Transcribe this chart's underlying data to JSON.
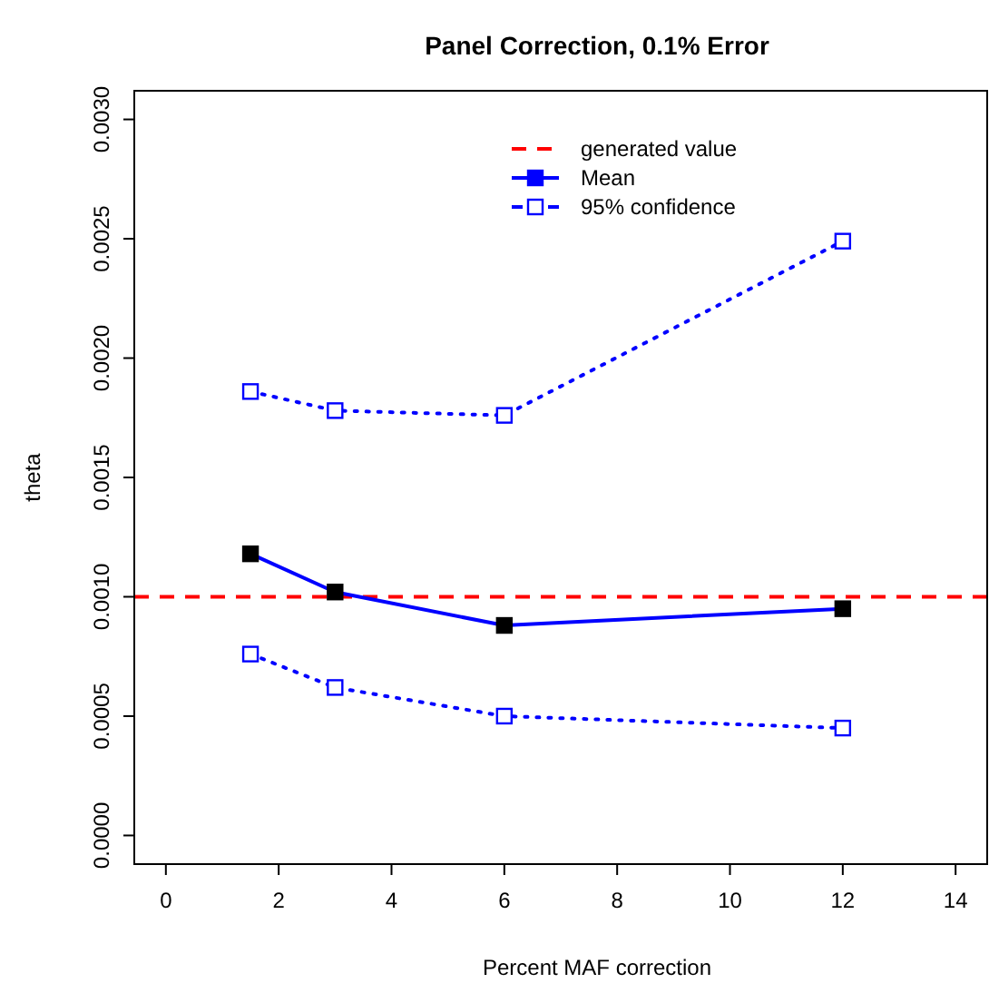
{
  "chart_data": {
    "type": "line",
    "title": "Panel Correction, 0.1% Error",
    "xlabel": "Percent MAF correction",
    "ylabel": "theta",
    "x": [
      1.5,
      3,
      6,
      12
    ],
    "series": [
      {
        "name": "Mean",
        "color": "#0000ff",
        "values": [
          0.00118,
          0.00102,
          0.00088,
          0.00095
        ],
        "marker": "square",
        "line_style": "solid"
      },
      {
        "name": "95% confidence",
        "color": "#0000ff",
        "values": [
          0.00186,
          0.00178,
          0.00176,
          0.00249
        ],
        "marker": "square",
        "line_style": "dotted"
      },
      {
        "color": "#0000ff",
        "values": [
          0.00076,
          0.00062,
          0.0005,
          0.00045
        ],
        "marker": "square",
        "line_style": "dotted"
      }
    ],
    "ref_lines": [
      {
        "axis": "y",
        "value": 0.001,
        "label": "generated value",
        "color": "#ff0000",
        "line_style": "dashed"
      }
    ],
    "xlim": [
      -0.56,
      14.56
    ],
    "xticks": [
      0,
      2,
      4,
      6,
      8,
      10,
      12,
      14
    ],
    "ylim": [
      -0.00012,
      0.00312
    ],
    "yticks": [
      {
        "value": 0,
        "label": "0.0000"
      },
      {
        "value": 0.0005,
        "label": "0.0005"
      },
      {
        "value": 0.001,
        "label": "0.0010"
      },
      {
        "value": 0.0015,
        "label": "0.0015"
      },
      {
        "value": 0.002,
        "label": "0.0020"
      },
      {
        "value": 0.0025,
        "label": "0.0025"
      },
      {
        "value": 0.003,
        "label": "0.0030"
      }
    ],
    "legend": "top right",
    "grid": false
  }
}
